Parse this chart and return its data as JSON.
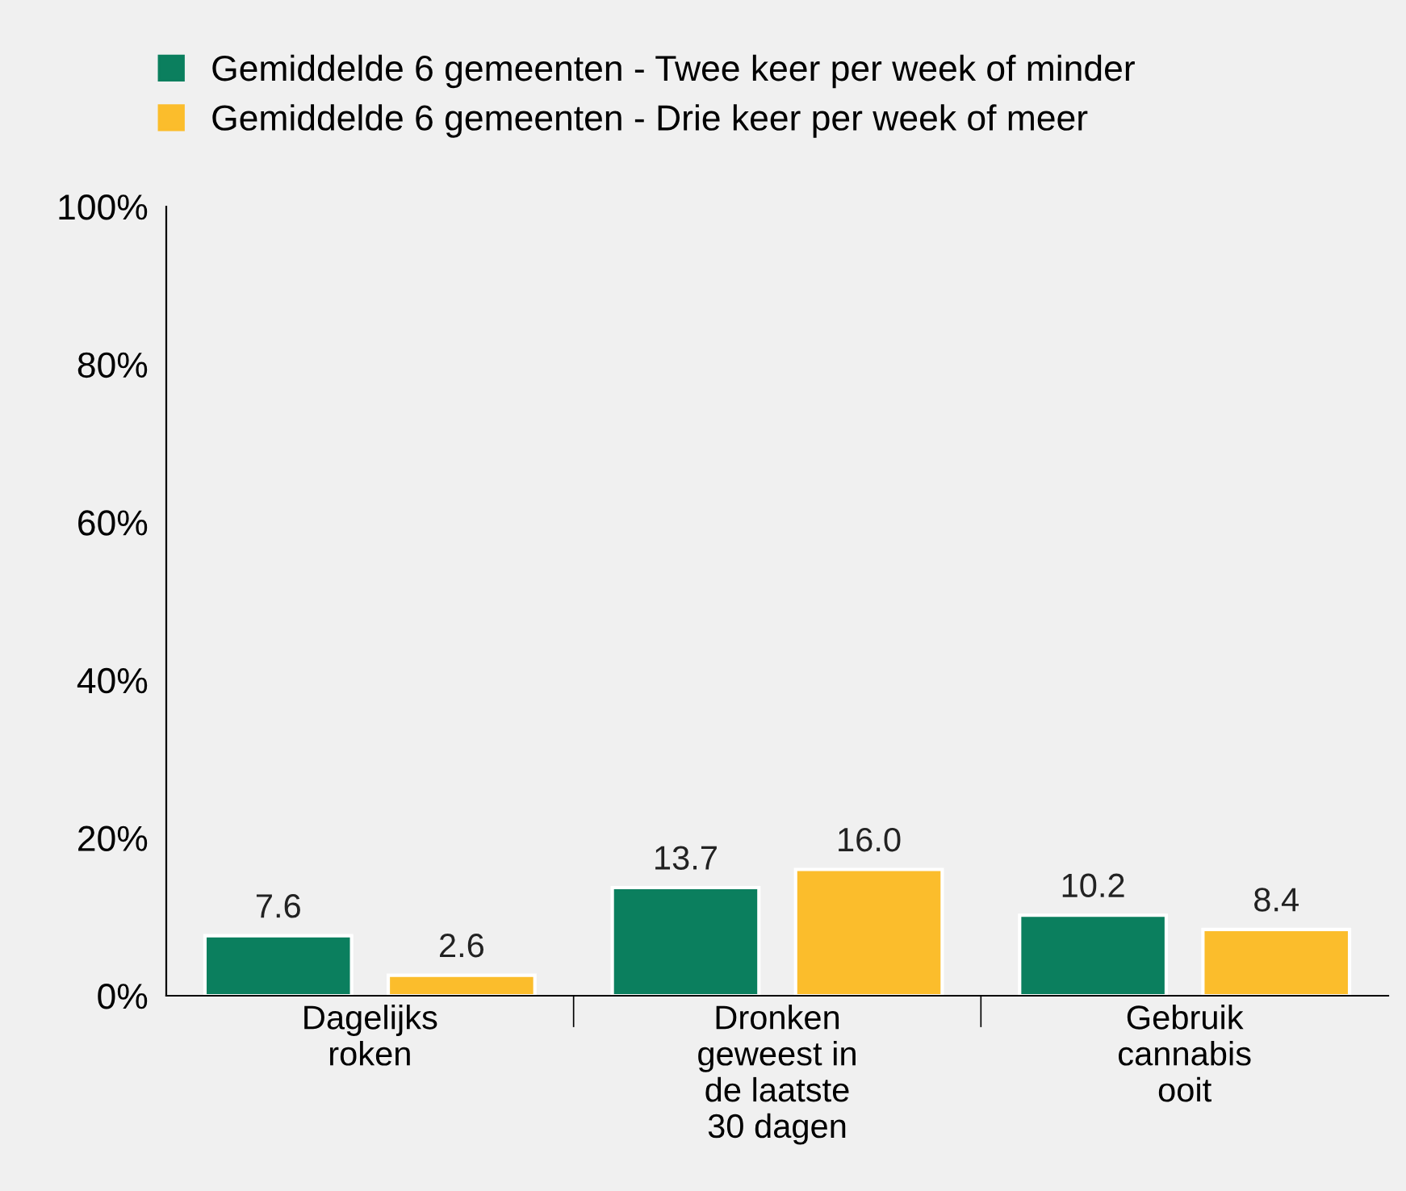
{
  "chart_data": {
    "type": "bar",
    "categories": [
      "Dagelijks\nroken",
      "Dronken\ngeweest in\nde laatste\n30 dagen",
      "Gebruik\ncannabis\nooit"
    ],
    "series": [
      {
        "name": "Gemiddelde 6 gemeenten - Twee keer per week of minder",
        "color": "#0b7f5e",
        "values": [
          7.6,
          13.7,
          10.2
        ]
      },
      {
        "name": "Gemiddelde 6 gemeenten - Drie keer per week of meer",
        "color": "#fbbd2c",
        "values": [
          2.6,
          16.0,
          8.4
        ]
      }
    ],
    "value_labels": [
      [
        "7.6",
        "13.7",
        "10.2"
      ],
      [
        "2.6",
        "16.0",
        "8.4"
      ]
    ],
    "ylim": [
      0,
      100
    ],
    "yticks": [
      {
        "value": 0,
        "label": "0%"
      },
      {
        "value": 20,
        "label": "20%"
      },
      {
        "value": 40,
        "label": "40%"
      },
      {
        "value": 60,
        "label": "60%"
      },
      {
        "value": 80,
        "label": "80%"
      },
      {
        "value": 100,
        "label": "100%"
      }
    ],
    "grid": false,
    "legend": "top left"
  }
}
